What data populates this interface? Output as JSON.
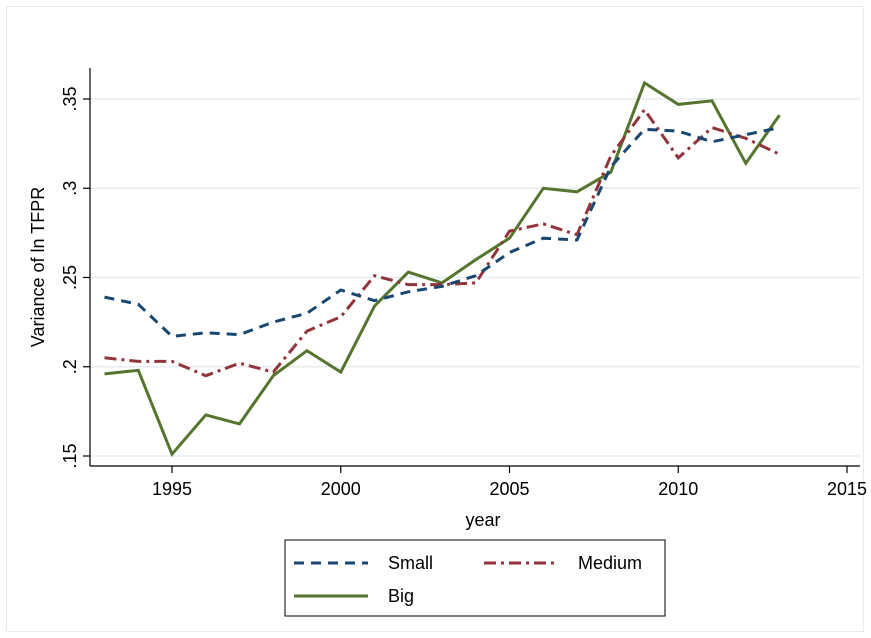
{
  "chart_data": {
    "type": "line",
    "title": "",
    "xlabel": "year",
    "ylabel": "Variance of ln TFPR",
    "xlim": [
      1993,
      2015
    ],
    "ylim": [
      0.15,
      0.35
    ],
    "x_ticks": [
      1995,
      2000,
      2005,
      2010,
      2015
    ],
    "x_tick_labels": [
      "1995",
      "2000",
      "2005",
      "2010",
      "2015"
    ],
    "y_ticks": [
      0.15,
      0.2,
      0.25,
      0.3,
      0.35
    ],
    "y_tick_labels": [
      ".15",
      ".2",
      ".25",
      ".3",
      ".35"
    ],
    "grid": "horizontal",
    "legend_position": "bottom",
    "x": [
      1993,
      1994,
      1995,
      1996,
      1997,
      1998,
      1999,
      2000,
      2001,
      2002,
      2003,
      2004,
      2005,
      2006,
      2007,
      2008,
      2009,
      2010,
      2011,
      2012,
      2013
    ],
    "series": [
      {
        "name": "Small",
        "color": "#1a476f",
        "dash": "dash",
        "values": [
          0.239,
          0.235,
          0.217,
          0.219,
          0.218,
          0.225,
          0.23,
          0.243,
          0.237,
          0.242,
          0.245,
          0.251,
          0.264,
          0.272,
          0.271,
          0.312,
          0.333,
          0.332,
          0.326,
          0.33,
          0.334
        ]
      },
      {
        "name": "Medium",
        "color": "#90353b",
        "dash": "dashdot",
        "values": [
          0.205,
          0.203,
          0.203,
          0.195,
          0.202,
          0.197,
          0.22,
          0.228,
          0.251,
          0.246,
          0.246,
          0.247,
          0.276,
          0.28,
          0.274,
          0.318,
          0.344,
          0.317,
          0.334,
          0.328,
          0.319
        ]
      },
      {
        "name": "Big",
        "color": "#55752f",
        "dash": "solid",
        "values": [
          0.196,
          0.198,
          0.151,
          0.173,
          0.168,
          0.195,
          0.209,
          0.197,
          0.234,
          0.253,
          0.247,
          0.26,
          0.272,
          0.3,
          0.298,
          0.309,
          0.359,
          0.347,
          0.349,
          0.314,
          0.341
        ]
      }
    ]
  }
}
